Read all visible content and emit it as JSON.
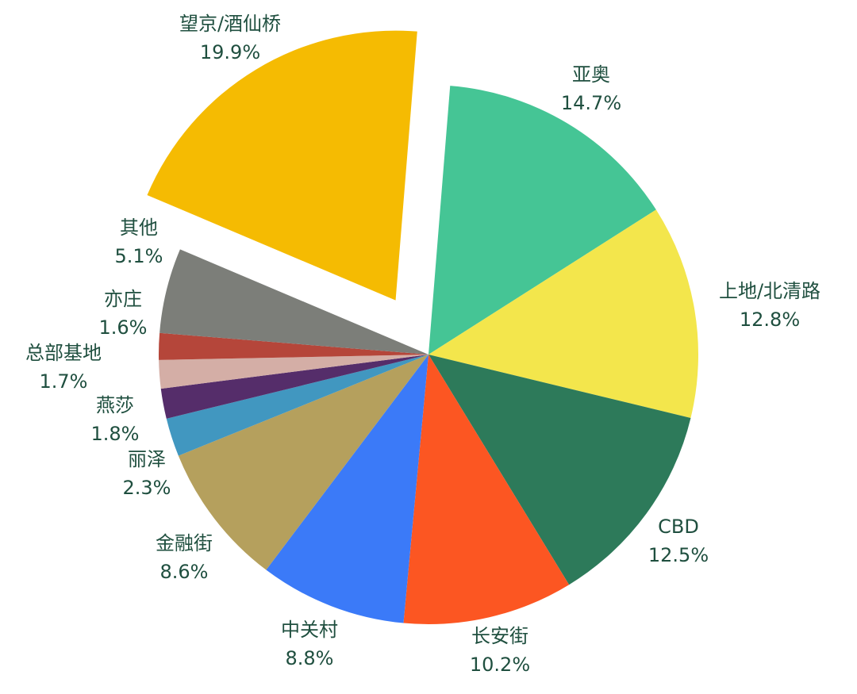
{
  "chart_data": {
    "type": "pie",
    "categories": [
      "亚奥",
      "上地/北清路",
      "CBD",
      "长安街",
      "中关村",
      "金融街",
      "丽泽",
      "燕莎",
      "总部基地",
      "亦庄",
      "其他",
      "望京/酒仙桥"
    ],
    "values": [
      14.7,
      12.8,
      12.5,
      10.2,
      8.8,
      8.6,
      2.3,
      1.8,
      1.7,
      1.6,
      5.1,
      19.9
    ],
    "value_labels": [
      "14.7%",
      "12.8%",
      "12.5%",
      "10.2%",
      "8.8%",
      "8.6%",
      "2.3%",
      "1.8%",
      "1.7%",
      "1.6%",
      "5.1%",
      "19.9%"
    ],
    "colors": [
      "#45c595",
      "#f3e64c",
      "#2d7a5a",
      "#fc5622",
      "#3b7af8",
      "#b5a05d",
      "#4197c0",
      "#552d6a",
      "#d4aea6",
      "#b5463a",
      "#7c7e79",
      "#f5bb02"
    ]
  }
}
